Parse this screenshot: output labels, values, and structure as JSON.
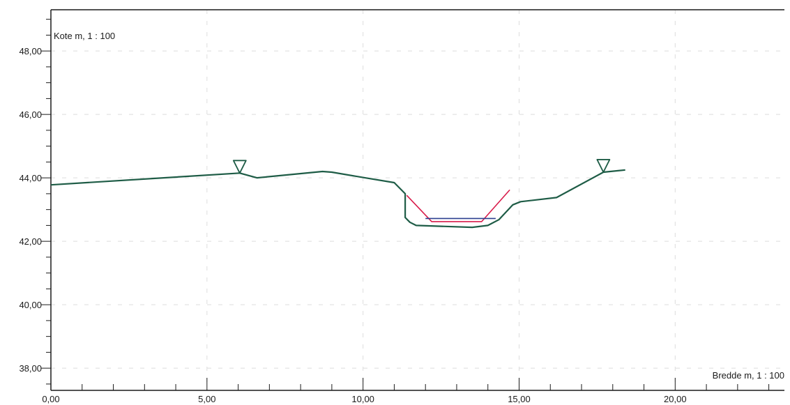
{
  "chart_data": {
    "type": "line",
    "ylabel": "Kote m, 1 : 100",
    "xlabel": "Bredde m, 1 : 100",
    "xlim": [
      0,
      23.5
    ],
    "ylim": [
      37.3,
      49.3
    ],
    "x_ticks": [
      0,
      5,
      10,
      15,
      20
    ],
    "x_tick_labels": [
      "0,00",
      "5,00",
      "10,00",
      "15,00",
      "20,00"
    ],
    "y_ticks": [
      38,
      40,
      42,
      44,
      46,
      48
    ],
    "y_tick_labels": [
      "38,00",
      "40,00",
      "42,00",
      "44,00",
      "46,00",
      "48,00"
    ],
    "grid": true,
    "colors": {
      "terrain": "#1e5c46",
      "design": "#d81b4a",
      "water": "#2b3f8f",
      "axis": "#1a1a1a",
      "grid": "#dcdcdc"
    },
    "series": [
      {
        "role": "terrain",
        "x": [
          0.0,
          6.05,
          6.6,
          8.7,
          9.0,
          10.2,
          11.0,
          11.35,
          11.35,
          11.5,
          11.7,
          13.5,
          14.0,
          14.35,
          14.8,
          15.05,
          16.2,
          17.7,
          18.4
        ],
        "y": [
          43.78,
          44.15,
          44.0,
          44.2,
          44.18,
          43.98,
          43.85,
          43.5,
          42.75,
          42.6,
          42.5,
          42.44,
          42.5,
          42.68,
          43.15,
          43.25,
          43.38,
          44.18,
          44.25
        ]
      },
      {
        "role": "design",
        "x": [
          11.4,
          12.2,
          13.8,
          14.7
        ],
        "y": [
          43.45,
          42.62,
          42.62,
          43.62
        ]
      },
      {
        "role": "water",
        "x": [
          12.0,
          14.25
        ],
        "y": [
          42.72,
          42.72
        ]
      }
    ],
    "markers": [
      {
        "type": "triangle-down",
        "x": 6.05,
        "y": 44.15
      },
      {
        "type": "triangle-down",
        "x": 17.7,
        "y": 44.18
      }
    ]
  }
}
